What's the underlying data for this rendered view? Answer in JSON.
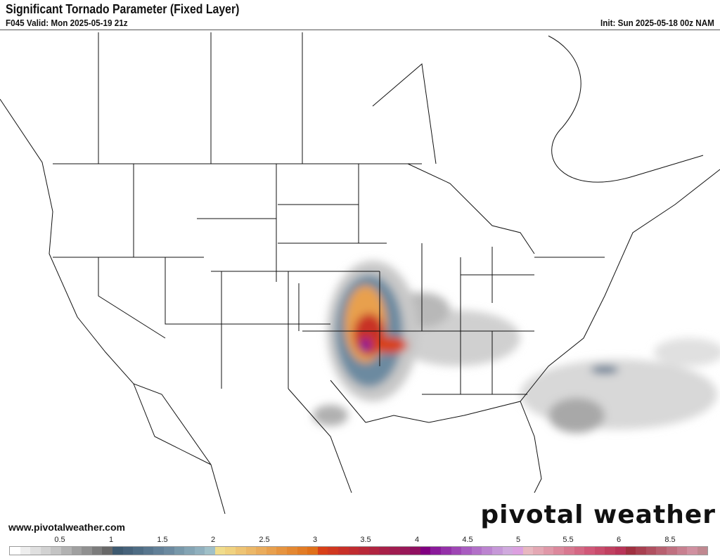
{
  "header": {
    "title": "Significant Tornado Parameter (Fixed Layer)",
    "valid": "F045 Valid: Mon 2025-05-19 21z",
    "init": "Init: Sun 2025-05-18 00z NAM"
  },
  "footer": {
    "website": "www.pivotalweather.com",
    "brand": "pivotal weather"
  },
  "colorbar": {
    "labels": [
      "0.5",
      "1",
      "1.5",
      "2",
      "2.5",
      "3",
      "3.5",
      "4",
      "4.5",
      "5",
      "5.5",
      "6",
      "8.5"
    ],
    "colors": [
      "#ffffff",
      "#eeeeee",
      "#e0e0e0",
      "#d2d2d2",
      "#c4c4c4",
      "#b2b2b2",
      "#a0a0a0",
      "#909090",
      "#7c7c7c",
      "#686868",
      "#3e5a70",
      "#46627a",
      "#4e6c84",
      "#58768e",
      "#628098",
      "#6c8aa0",
      "#7898aa",
      "#84a4b4",
      "#90b0be",
      "#a0c0c8",
      "#f0dc8c",
      "#f0d280",
      "#eec474",
      "#ecb868",
      "#eaac5c",
      "#e8a04e",
      "#e69440",
      "#e48832",
      "#e27c26",
      "#e0701a",
      "#d84018",
      "#d03820",
      "#c83028",
      "#c02c30",
      "#b82838",
      "#b02440",
      "#a82048",
      "#a01c50",
      "#981858",
      "#901060",
      "#800080",
      "#8a1a9a",
      "#9430a8",
      "#9e46b4",
      "#a85cc0",
      "#b270c8",
      "#bc84d0",
      "#c698d8",
      "#d0aade",
      "#dca0e0",
      "#e8b8c0",
      "#e4a8b4",
      "#e098a8",
      "#dc889c",
      "#d87890",
      "#d46884",
      "#d05878",
      "#c84c6c",
      "#c04060",
      "#b83458",
      "#a03040",
      "#a84050",
      "#b05060",
      "#b86070",
      "#c07080",
      "#c88090",
      "#d090a0",
      "#c08890"
    ]
  }
}
